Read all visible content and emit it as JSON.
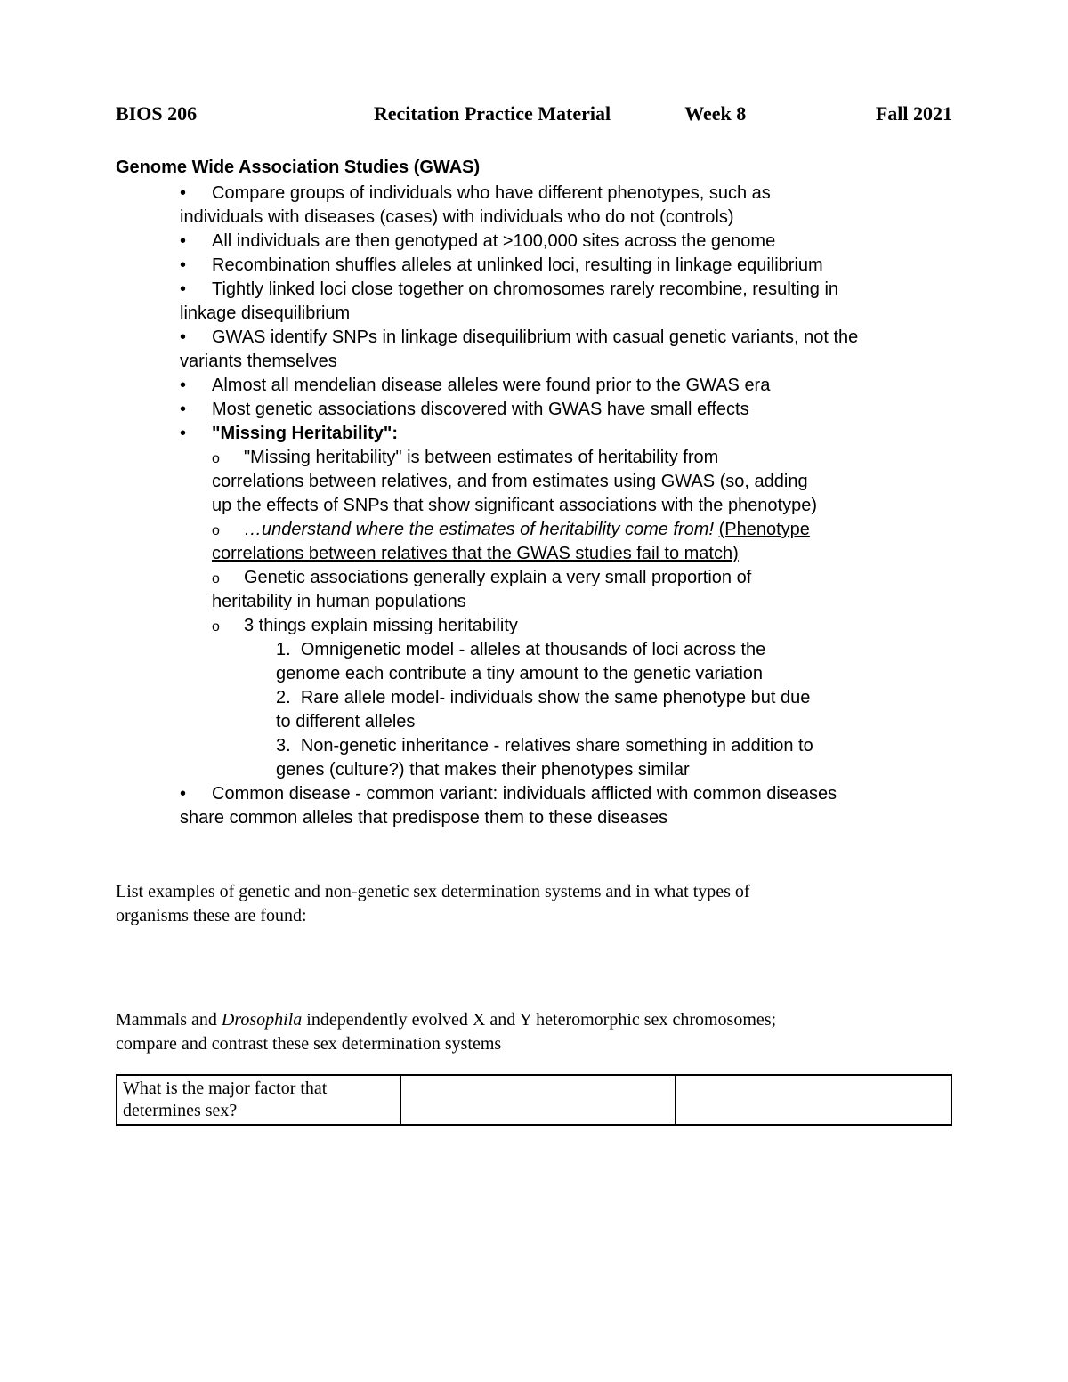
{
  "header": {
    "course": "BIOS 206",
    "title": "Recitation Practice Material",
    "week": "Week 8",
    "term": "Fall 2021"
  },
  "section_title": "Genome Wide Association Studies (GWAS)",
  "bullets": {
    "b1a": "Compare groups of individuals who have different phenotypes, such as",
    "b1b": "individuals with diseases (cases) with individuals who do not (controls)",
    "b2": "All individuals are then genotyped at >100,000 sites across the genome",
    "b3": "Recombination shuffles alleles at unlinked loci, resulting in linkage equilibrium",
    "b4a": "Tightly linked loci close together on chromosomes rarely recombine, resulting in",
    "b4b": "linkage disequilibrium",
    "b5a": "GWAS identify SNPs in linkage disequilibrium with casual genetic variants, not the",
    "b5b": "variants themselves",
    "b6": "Almost all mendelian disease alleles were found prior to the GWAS era",
    "b7": "Most genetic associations discovered with GWAS have small effects",
    "b8": "\"Missing Heritability\":",
    "s1a": "\"Missing heritability\" is between estimates of heritability from",
    "s1b": "correlations between relatives, and from estimates using GWAS (so, adding",
    "s1c": "up the effects of SNPs that show significant associations with the phenotype)",
    "s2a": "…understand where the estimates of heritability come from!",
    "s2b": "(Phenotype ",
    "s2c": "correlations between relatives that the GWAS studies fail to match)",
    "s3a": "Genetic associations generally explain a very small proportion of",
    "s3b": "heritability in human populations",
    "s4": "3 things explain missing heritability",
    "n1a": "Omnigenetic model - alleles at thousands of loci across the",
    "n1b": "genome each contribute a tiny amount to the genetic variation",
    "n2a": "Rare allele model- individuals show the same phenotype but due",
    "n2b": "to different alleles",
    "n3a": "Non-genetic inheritance - relatives share something in addition to",
    "n3b": "genes (culture?) that makes their phenotypes similar",
    "b9a": "Common disease - common variant: individuals afflicted with common diseases",
    "b9b": "share common alleles that predispose them to these diseases"
  },
  "questions": {
    "q1a": "List examples of genetic and non-genetic sex determination systems and in what types of",
    "q1b": "organisms these are found:",
    "q2a_pre": "Mammals and ",
    "q2a_it": "Drosophila",
    "q2a_post": " independently evolved X and Y heteromorphic sex chromosomes;",
    "q2b": "compare and contrast these sex determination systems"
  },
  "table": {
    "col1a": "What is the major factor that",
    "col1b": "determines sex?",
    "col2": "",
    "col3": ""
  },
  "marks": {
    "bullet": "•",
    "circle": "o",
    "n1": "1.",
    "n2": "2.",
    "n3": "3."
  }
}
